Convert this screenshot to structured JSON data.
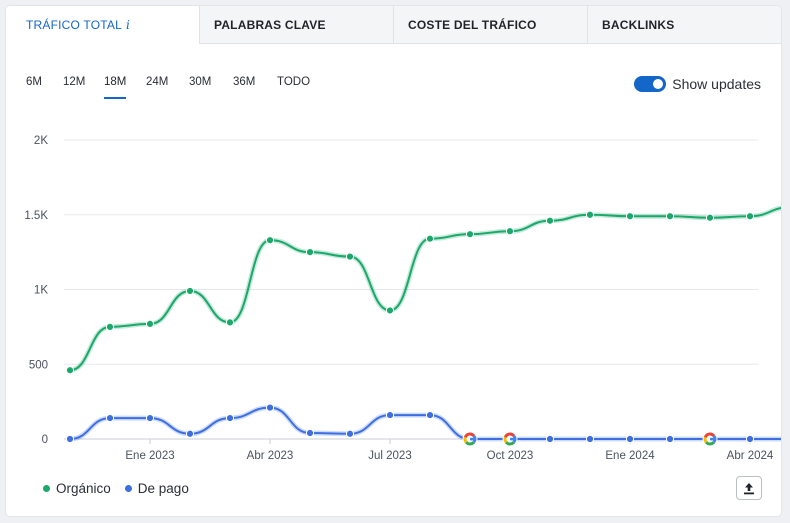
{
  "tabs": [
    {
      "label": "TRÁFICO TOTAL",
      "info": "i",
      "active": true
    },
    {
      "label": "PALABRAS CLAVE",
      "active": false
    },
    {
      "label": "COSTE DEL TRÁFICO",
      "active": false
    },
    {
      "label": "BACKLINKS",
      "active": false
    }
  ],
  "periods": [
    "6M",
    "12M",
    "18M",
    "24M",
    "30M",
    "36M",
    "TODO"
  ],
  "selected_period": "18M",
  "toggle": {
    "label": "Show updates",
    "on": true
  },
  "export_icon": "export-icon",
  "colors": {
    "organic": "#1aa86b",
    "paid": "#3d6fe0",
    "accent": "#1467c8",
    "google_blue": "#4285F4",
    "google_red": "#EA4335",
    "google_yellow": "#FBBC05",
    "google_green": "#34A853"
  },
  "chart_data": {
    "type": "line",
    "ylim": [
      0,
      2000
    ],
    "yticks": [
      0,
      500,
      1000,
      1500,
      2000
    ],
    "ytick_labels": [
      "0",
      "500",
      "1K",
      "1.5K",
      "2K"
    ],
    "x_months": [
      "2022-11",
      "2022-12",
      "2023-01",
      "2023-02",
      "2023-03",
      "2023-04",
      "2023-05",
      "2023-06",
      "2023-07",
      "2023-08",
      "2023-09",
      "2023-10",
      "2023-11",
      "2023-12",
      "2024-01",
      "2024-02",
      "2024-03",
      "2024-04",
      "2024-05"
    ],
    "xticks": [
      {
        "month": "2023-01",
        "label": "Ene 2023"
      },
      {
        "month": "2023-04",
        "label": "Abr 2023"
      },
      {
        "month": "2023-07",
        "label": "Jul 2023"
      },
      {
        "month": "2023-10",
        "label": "Oct 2023"
      },
      {
        "month": "2024-01",
        "label": "Ene 2024"
      },
      {
        "month": "2024-04",
        "label": "Abr 2024"
      }
    ],
    "series": [
      {
        "name": "Orgánico",
        "color": "#1aa86b",
        "values": [
          460,
          750,
          770,
          990,
          780,
          1330,
          1250,
          1220,
          860,
          1340,
          1370,
          1390,
          1460,
          1500,
          1490,
          1490,
          1480,
          1490,
          1550
        ]
      },
      {
        "name": "De pago",
        "color": "#3d6fe0",
        "values": [
          0,
          140,
          140,
          35,
          140,
          210,
          40,
          35,
          160,
          160,
          0,
          0,
          0,
          0,
          0,
          0,
          0,
          0,
          0
        ]
      }
    ],
    "google_updates": [
      "2023-09",
      "2023-10",
      "2024-03"
    ],
    "grid": true,
    "legend": "bottom-left"
  }
}
